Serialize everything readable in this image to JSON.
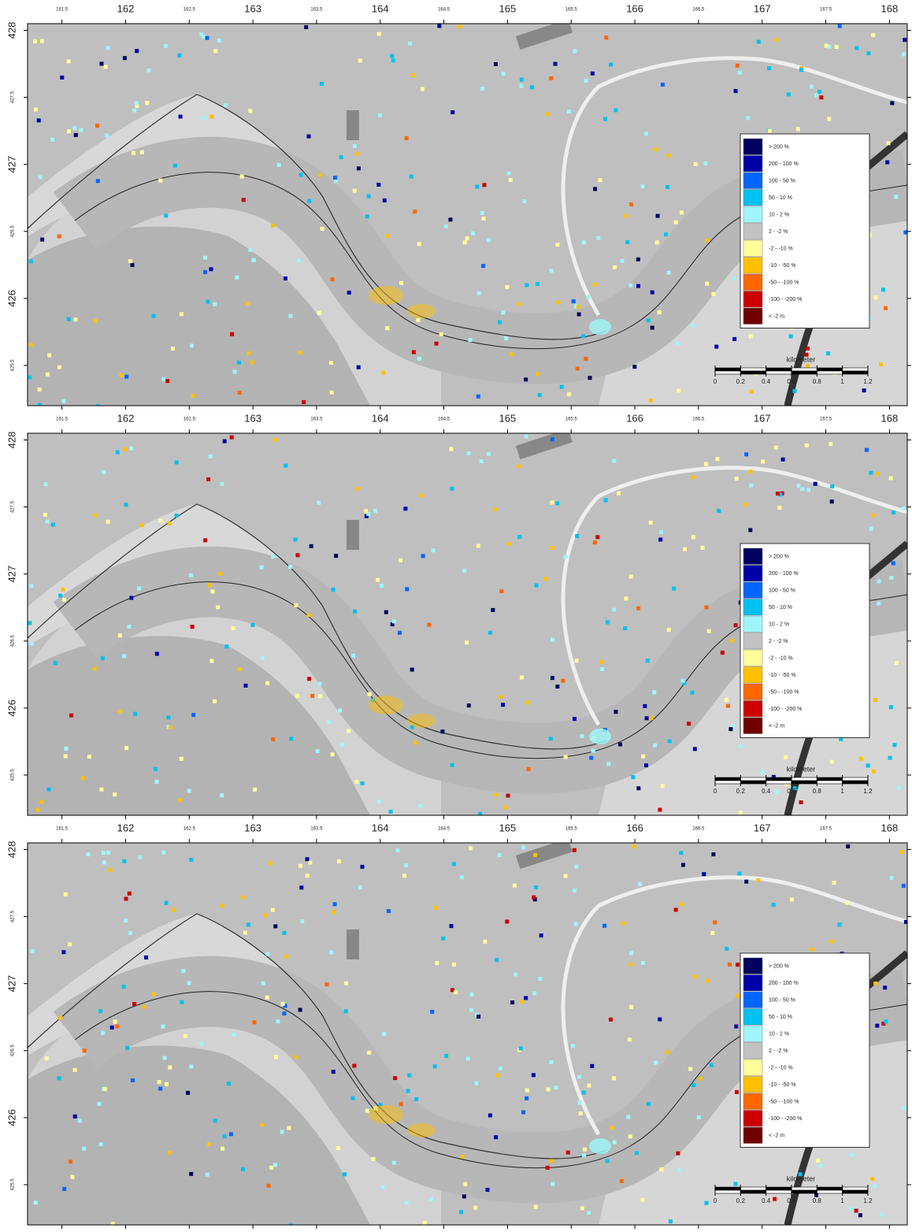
{
  "panels": [
    {
      "x_ticks": [
        161.5,
        162,
        162.5,
        163,
        163.5,
        164,
        164.5,
        165,
        165.5,
        166,
        166.5,
        167,
        167.5,
        168
      ],
      "y_ticks": [
        428,
        427.5,
        427,
        426.5,
        426,
        425.5
      ],
      "xlim": [
        161.23,
        168.14
      ],
      "ylim": [
        425.2,
        428.05
      ],
      "legend": [
        {
          "label": "> 200 %",
          "color": "#00005e"
        },
        {
          "label": "200 - 100 %",
          "color": "#0000a8"
        },
        {
          "label": "100 - 50 %",
          "color": "#0066ff"
        },
        {
          "label": "50 - 10 %",
          "color": "#00c0f0"
        },
        {
          "label": "10 - 2 %",
          "color": "#9ef6fa"
        },
        {
          "label": "2 - -2 %",
          "color": "#c2c2c2"
        },
        {
          "label": "-2 - -10 %",
          "color": "#ffff99"
        },
        {
          "label": "-10 - -50 %",
          "color": "#ffc000"
        },
        {
          "label": "-50 - -100 %",
          "color": "#ff6600"
        },
        {
          "label": "-100 - -200 %",
          "color": "#cc0000"
        },
        {
          "label": "< -2 m",
          "color": "#700000"
        }
      ],
      "scale_bar": {
        "title": "kilometer",
        "ticks": [
          0,
          0.2,
          0.4,
          0.6,
          0.8,
          1,
          1.2
        ]
      }
    },
    {
      "x_ticks": [
        161.5,
        162,
        162.5,
        163,
        163.5,
        164,
        164.5,
        165,
        165.5,
        166,
        166.5,
        167,
        167.5,
        168
      ],
      "y_ticks": [
        428,
        427.5,
        427,
        426.5,
        426,
        425.5
      ],
      "xlim": [
        161.23,
        168.14
      ],
      "ylim": [
        425.2,
        428.05
      ],
      "legend": [
        {
          "label": "> 200 %",
          "color": "#00005e"
        },
        {
          "label": "200 - 100 %",
          "color": "#0000a8"
        },
        {
          "label": "100 - 50 %",
          "color": "#0066ff"
        },
        {
          "label": "50 - 10 %",
          "color": "#00c0f0"
        },
        {
          "label": "10 - 2 %",
          "color": "#9ef6fa"
        },
        {
          "label": "2 - -2 %",
          "color": "#c2c2c2"
        },
        {
          "label": "-2 - -10 %",
          "color": "#ffff99"
        },
        {
          "label": "-10 - -50 %",
          "color": "#ffc000"
        },
        {
          "label": "-50 - -100 %",
          "color": "#ff6600"
        },
        {
          "label": "-100 - -200 %",
          "color": "#cc0000"
        },
        {
          "label": "< -2 m",
          "color": "#700000"
        }
      ],
      "scale_bar": {
        "title": "kilometer",
        "ticks": [
          0,
          0.2,
          0.4,
          0.6,
          0.8,
          1,
          1.2
        ]
      }
    },
    {
      "x_ticks": [
        161.5,
        162,
        162.5,
        163,
        163.5,
        164,
        164.5,
        165,
        165.5,
        166,
        166.5,
        167,
        167.5,
        168
      ],
      "y_ticks": [
        428,
        427.5,
        427,
        426.5,
        426,
        425.5
      ],
      "xlim": [
        161.23,
        168.14
      ],
      "ylim": [
        425.2,
        428.05
      ],
      "legend": [
        {
          "label": "> 200 %",
          "color": "#00005e"
        },
        {
          "label": "200 - 100 %",
          "color": "#0000a8"
        },
        {
          "label": "100 - 50 %",
          "color": "#0066ff"
        },
        {
          "label": "50 - 10 %",
          "color": "#00c0f0"
        },
        {
          "label": "10 - 2 %",
          "color": "#9ef6fa"
        },
        {
          "label": "2 - -2 %",
          "color": "#c2c2c2"
        },
        {
          "label": "-2 - -10 %",
          "color": "#ffff99"
        },
        {
          "label": "-10 - -50 %",
          "color": "#ffc000"
        },
        {
          "label": "-50 - -100 %",
          "color": "#ff6600"
        },
        {
          "label": "-100 - -200 %",
          "color": "#cc0000"
        },
        {
          "label": "< -2 m",
          "color": "#700000"
        }
      ],
      "scale_bar": {
        "title": "kilometer",
        "ticks": [
          0,
          0.2,
          0.4,
          0.6,
          0.8,
          1,
          1.2
        ]
      }
    }
  ]
}
